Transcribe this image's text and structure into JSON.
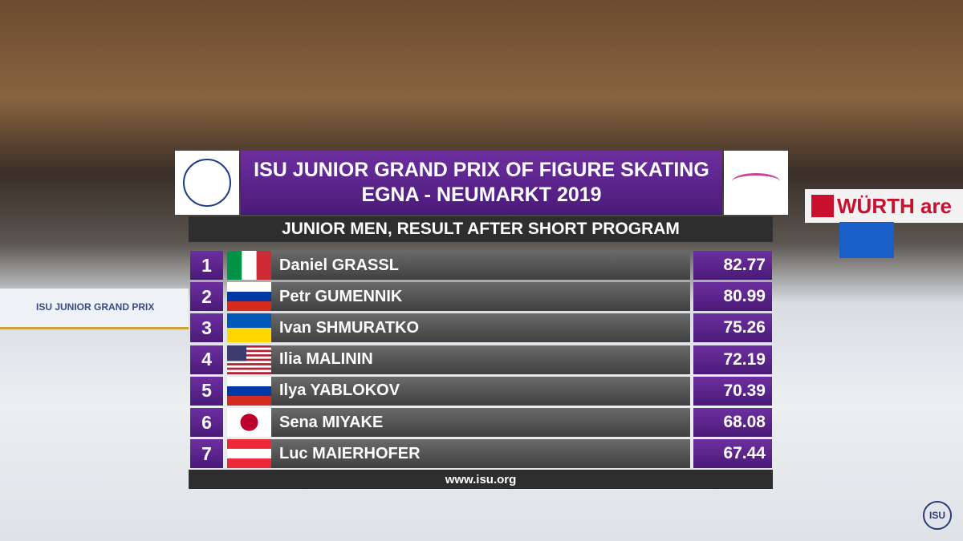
{
  "header": {
    "title_line1": "ISU JUNIOR GRAND PRIX OF FIGURE SKATING",
    "title_line2": "EGNA - NEUMARKT 2019"
  },
  "subtitle": "JUNIOR MEN, RESULT AFTER SHORT PROGRAM",
  "rows": [
    {
      "rank": 1,
      "name": "Daniel GRASSL",
      "score": 82.77
    },
    {
      "rank": 2,
      "name": "Petr GUMENNIK",
      "score": 80.99
    },
    {
      "rank": 3,
      "name": "Ivan SHMURATKO",
      "score": 75.26
    },
    {
      "rank": 4,
      "name": "Ilia MALININ",
      "score": 72.19
    },
    {
      "rank": 5,
      "name": "Ilya YABLOKOV",
      "score": 70.39
    },
    {
      "rank": 6,
      "name": "Sena MIYAKE",
      "score": 68.08
    },
    {
      "rank": 7,
      "name": "Luc MAIERHOFER",
      "score": 67.44
    }
  ],
  "footer": "www.isu.org",
  "background": {
    "rink_banner": "ISU JUNIOR GRAND PRIX",
    "sponsor": "WÜRTH are",
    "corner_logo": "ISU"
  }
}
